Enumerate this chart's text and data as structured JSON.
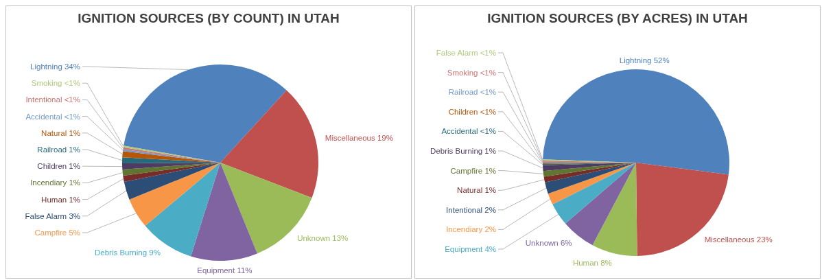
{
  "chart_data": [
    {
      "type": "pie",
      "title": "IGNITION SOURCES (BY COUNT) IN UTAH",
      "categories": [
        "Lightning",
        "Miscellaneous",
        "Unknown",
        "Equipment",
        "Debris Burning",
        "Campfire",
        "False Alarm",
        "Human",
        "Incendiary",
        "Children",
        "Railroad",
        "Natural",
        "Accidental",
        "Intentional",
        "Smoking"
      ],
      "values": [
        34,
        19,
        13,
        11,
        9,
        5,
        3,
        1,
        1,
        1,
        1,
        1,
        0.3,
        0.3,
        0.3
      ],
      "value_labels": [
        "34%",
        "19%",
        "13%",
        "11%",
        "9%",
        "5%",
        "3%",
        "1%",
        "1%",
        "1%",
        "1%",
        "1%",
        "<1%",
        "<1%",
        "<1%"
      ],
      "colors": [
        "#4f81bd",
        "#c0504d",
        "#9bbb59",
        "#8064a2",
        "#4bacc6",
        "#f79646",
        "#2c4d75",
        "#772c2a",
        "#5f7530",
        "#4d3b62",
        "#276a7c",
        "#b65708",
        "#729aca",
        "#cd7371",
        "#afc97a"
      ]
    },
    {
      "type": "pie",
      "title": "IGNITION SOURCES (BY ACRES) IN UTAH",
      "categories": [
        "Lightning",
        "Miscellaneous",
        "Human",
        "Unknown",
        "Equipment",
        "Incendiary",
        "Intentional",
        "Natural",
        "Campfire",
        "Debris Burning",
        "Accidental",
        "Children",
        "Railroad",
        "Smoking",
        "False Alarm"
      ],
      "values": [
        52,
        23,
        8,
        6,
        4,
        2,
        2,
        1,
        1,
        1,
        0.2,
        0.2,
        0.2,
        0.2,
        0.2
      ],
      "value_labels": [
        "52%",
        "23%",
        "8%",
        "6%",
        "4%",
        "2%",
        "2%",
        "1%",
        "1%",
        "1%",
        "<1%",
        "<1%",
        "<1%",
        "<1%",
        "<1%"
      ],
      "colors": [
        "#4f81bd",
        "#c0504d",
        "#9bbb59",
        "#8064a2",
        "#4bacc6",
        "#f79646",
        "#2c4d75",
        "#772c2a",
        "#5f7530",
        "#4d3b62",
        "#276a7c",
        "#b65708",
        "#729aca",
        "#cd7371",
        "#afc97a"
      ]
    }
  ]
}
